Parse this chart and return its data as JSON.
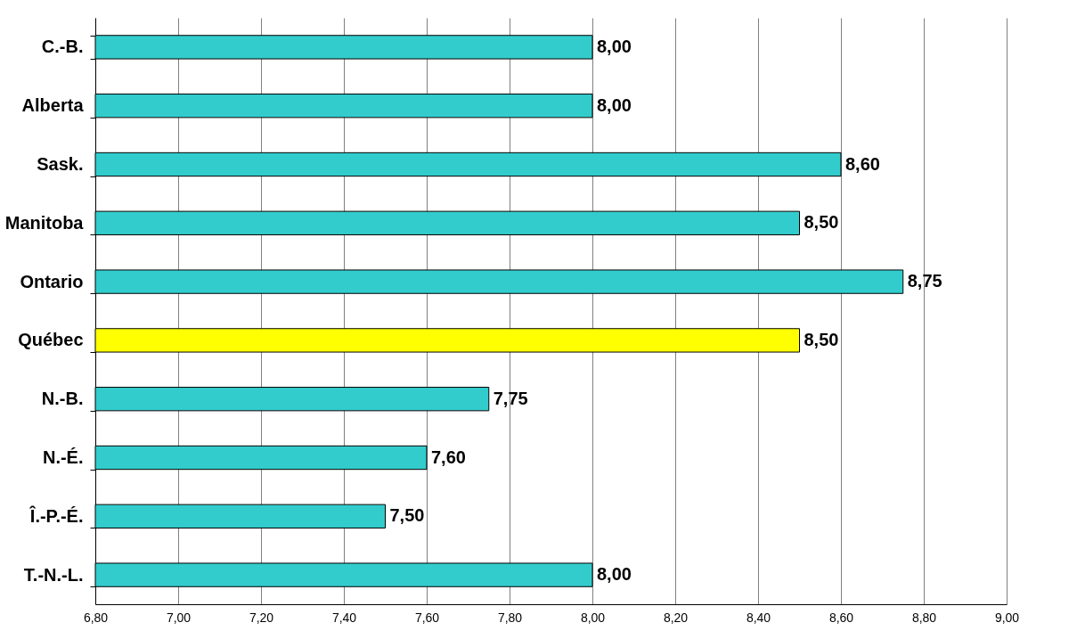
{
  "chart_data": {
    "type": "bar",
    "orientation": "horizontal",
    "categories": [
      "C.-B.",
      "Alberta",
      "Sask.",
      "Manitoba",
      "Ontario",
      "Québec",
      "N.-B.",
      "N.-É.",
      "Î.-P.-É.",
      "T.-N.-L."
    ],
    "values": [
      8.0,
      8.0,
      8.6,
      8.5,
      8.75,
      8.5,
      7.75,
      7.6,
      7.5,
      8.0
    ],
    "value_labels": [
      "8,00",
      "8,00",
      "8,60",
      "8,50",
      "8,75",
      "8,50",
      "7,75",
      "7,60",
      "7,50",
      "8,00"
    ],
    "colors": [
      "#33cccc",
      "#33cccc",
      "#33cccc",
      "#33cccc",
      "#33cccc",
      "#ffff00",
      "#33cccc",
      "#33cccc",
      "#33cccc",
      "#33cccc"
    ],
    "xlim": [
      6.8,
      9.0
    ],
    "xticks": [
      {
        "value": 6.8,
        "label": "6,80"
      },
      {
        "value": 7.0,
        "label": "7,00"
      },
      {
        "value": 7.2,
        "label": "7,20"
      },
      {
        "value": 7.4,
        "label": "7,40"
      },
      {
        "value": 7.6,
        "label": "7,60"
      },
      {
        "value": 7.8,
        "label": "7,80"
      },
      {
        "value": 8.0,
        "label": "8,00"
      },
      {
        "value": 8.2,
        "label": "8,20"
      },
      {
        "value": 8.4,
        "label": "8,40"
      },
      {
        "value": 8.6,
        "label": "8,60"
      },
      {
        "value": 8.8,
        "label": "8,80"
      },
      {
        "value": 9.0,
        "label": "9,00"
      }
    ],
    "grid": "x"
  }
}
